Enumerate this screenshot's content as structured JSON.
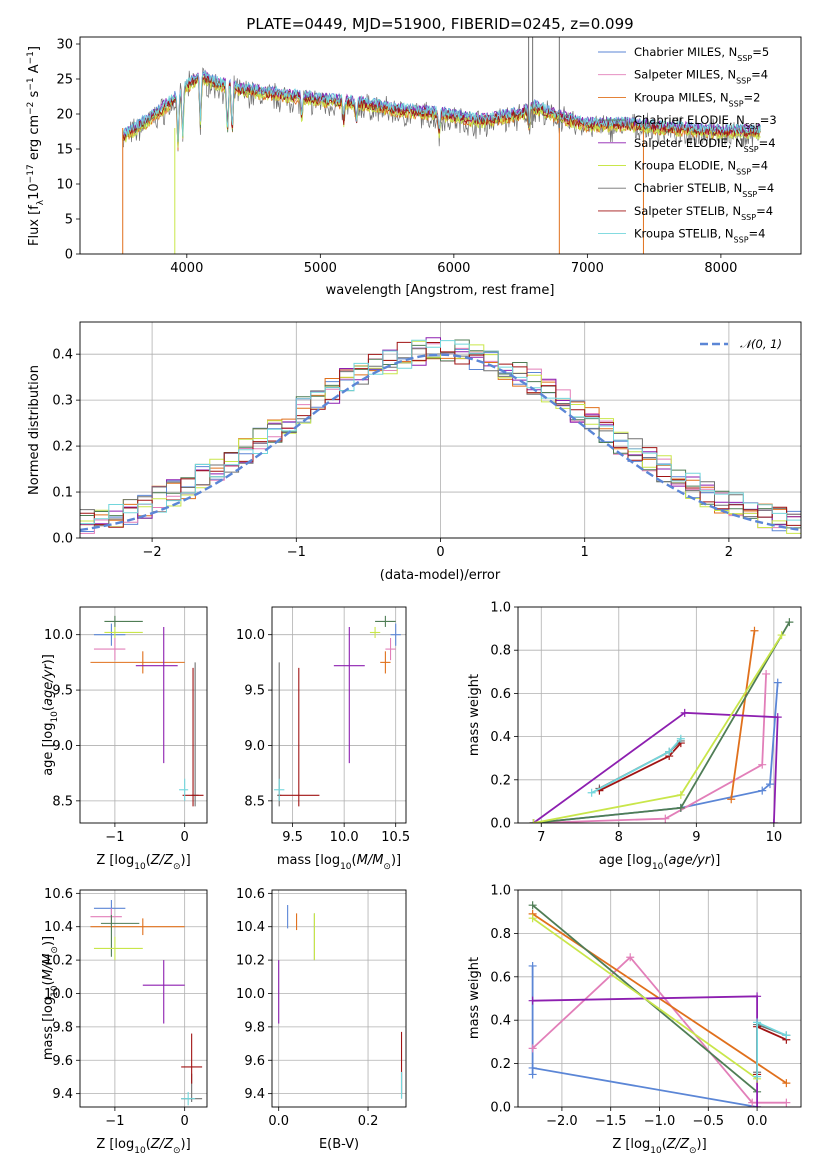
{
  "title": "PLATE=0449, MJD=51900, FIBERID=0245, z=0.099",
  "palette": {
    "Chabrier MILES": "#5b86d6",
    "Salpeter MILES": "#e27fb9",
    "Kroupa MILES": "#e0701c",
    "Chabrier ELODIE": "#4f7d55",
    "Salpeter ELODIE": "#8d1fb0",
    "Kroupa ELODIE": "#c9e64a",
    "Chabrier STELIB": "#707070",
    "Salpeter STELIB": "#a01313",
    "Kroupa STELIB": "#72d6dc"
  },
  "chart_data": [
    {
      "id": "spectrum",
      "type": "line",
      "title": "PLATE=0449, MJD=51900, FIBERID=0245, z=0.099",
      "xlabel": "wavelength [Angstrom, rest frame]",
      "ylabel": "Flux [f_λ 10^-17 erg cm^-2 s^-1 A^-1]",
      "xlim": [
        3200,
        8600
      ],
      "ylim": [
        0,
        31
      ],
      "xticks": [
        4000,
        5000,
        6000,
        7000,
        8000
      ],
      "yticks": [
        0,
        5,
        10,
        15,
        20,
        25,
        30
      ],
      "legend": "upper right",
      "legend_entries": [
        {
          "model": "Chabrier MILES",
          "n_ssp": "5"
        },
        {
          "model": "Salpeter MILES",
          "n_ssp": "4"
        },
        {
          "model": "Kroupa MILES",
          "n_ssp": "2"
        },
        {
          "model": "Chabrier ELODIE",
          "n_ssp": "3"
        },
        {
          "model": "Salpeter ELODIE",
          "n_ssp": "4"
        },
        {
          "model": "Kroupa ELODIE",
          "n_ssp": "4"
        },
        {
          "model": "Chabrier STELIB",
          "n_ssp": "4"
        },
        {
          "model": "Salpeter STELIB",
          "n_ssp": "4"
        },
        {
          "model": "Kroupa STELIB",
          "n_ssp": "4"
        }
      ],
      "continuum": [
        [
          3500,
          16.5
        ],
        [
          3700,
          19
        ],
        [
          3900,
          22
        ],
        [
          4000,
          24
        ],
        [
          4100,
          25.5
        ],
        [
          4200,
          24.5
        ],
        [
          4400,
          23.5
        ],
        [
          4600,
          23
        ],
        [
          4800,
          22.5
        ],
        [
          5000,
          22
        ],
        [
          5300,
          21.5
        ],
        [
          5600,
          20.5
        ],
        [
          5900,
          20
        ],
        [
          6200,
          19
        ],
        [
          6500,
          20
        ],
        [
          6600,
          21
        ],
        [
          6800,
          19.5
        ],
        [
          7000,
          18.5
        ],
        [
          7300,
          18.5
        ],
        [
          7600,
          18
        ],
        [
          8000,
          17.5
        ],
        [
          8300,
          17.5
        ]
      ],
      "absorption_lines": [
        3934,
        3969,
        4102,
        4304,
        4340,
        4861,
        5175,
        5270,
        5890,
        6563
      ],
      "spikes": [
        [
          3520,
          0
        ],
        [
          3910,
          0
        ],
        [
          6790,
          0
        ],
        [
          7420,
          0
        ],
        [
          6560,
          31
        ],
        [
          6590,
          31
        ],
        [
          6790,
          31
        ],
        [
          7420,
          0
        ]
      ]
    },
    {
      "id": "residuals",
      "type": "step",
      "xlabel": "(data-model)/error",
      "ylabel": "Normed distribution",
      "xlim": [
        -2.5,
        2.5
      ],
      "ylim": [
        0,
        0.47
      ],
      "xticks": [
        -2,
        -1,
        0,
        1,
        2
      ],
      "yticks": [
        0.0,
        0.1,
        0.2,
        0.3,
        0.4
      ],
      "legend": "upper right",
      "gaussian_label": "𝒩(0, 1)",
      "bin_width": 0.1
    },
    {
      "id": "age-vs-z",
      "type": "scatter",
      "xlabel": "Z [log10(Z/Z⊙)]",
      "ylabel": "age [log10(age/yr)]",
      "xlim": [
        -1.5,
        0.32
      ],
      "ylim": [
        8.3,
        10.25
      ],
      "xticks": [
        -1,
        0
      ],
      "yticks": [
        8.5,
        9.0,
        9.5,
        10.0
      ],
      "points": [
        {
          "model": "Chabrier MILES",
          "x": -1.05,
          "y": 10.0,
          "xerr": [
            0.25,
            0.2
          ],
          "yerr": [
            0.1,
            0.1
          ]
        },
        {
          "model": "Salpeter MILES",
          "x": -1.0,
          "y": 9.87,
          "xerr": [
            0.3,
            0.15
          ],
          "yerr": [
            0.1,
            0.1
          ]
        },
        {
          "model": "Kroupa MILES",
          "x": -0.6,
          "y": 9.75,
          "xerr": [
            0.75,
            0.6
          ],
          "yerr": [
            0.1,
            0.1
          ]
        },
        {
          "model": "Chabrier ELODIE",
          "x": -1.0,
          "y": 10.12,
          "xerr": [
            0.15,
            0.4
          ],
          "yerr": [
            0.05,
            0.05
          ]
        },
        {
          "model": "Salpeter ELODIE",
          "x": -0.3,
          "y": 9.72,
          "xerr": [
            0.4,
            0.2
          ],
          "yerr": [
            0.88,
            0.35
          ]
        },
        {
          "model": "Kroupa ELODIE",
          "x": -1.0,
          "y": 10.02,
          "xerr": [
            0.15,
            0.4
          ],
          "yerr": [
            0.05,
            0.05
          ]
        },
        {
          "model": "Chabrier STELIB",
          "x": 0.15,
          "y": 8.55,
          "xerr": [
            0.05,
            0.05
          ],
          "yerr": [
            0.1,
            1.2
          ]
        },
        {
          "model": "Salpeter STELIB",
          "x": 0.12,
          "y": 8.55,
          "xerr": [
            0.15,
            0.15
          ],
          "yerr": [
            0.1,
            1.15
          ]
        },
        {
          "model": "Kroupa STELIB",
          "x": 0.0,
          "y": 8.6,
          "xerr": [
            0.08,
            0.05
          ],
          "yerr": [
            0.1,
            0.1
          ]
        }
      ]
    },
    {
      "id": "age-vs-mass",
      "type": "scatter",
      "xlabel": "mass [log10(M/M⊙)]",
      "ylabel": "",
      "xlim": [
        9.3,
        10.6
      ],
      "ylim": [
        8.3,
        10.25
      ],
      "xticks": [
        9.5,
        10.0,
        10.5
      ],
      "yticks": [
        8.5,
        9.0,
        9.5,
        10.0
      ],
      "points": [
        {
          "model": "Chabrier MILES",
          "x": 10.5,
          "y": 10.0,
          "xerr": [
            0.05,
            0.05
          ],
          "yerr": [
            0.1,
            0.1
          ]
        },
        {
          "model": "Salpeter MILES",
          "x": 10.45,
          "y": 9.87,
          "xerr": [
            0.05,
            0.05
          ],
          "yerr": [
            0.1,
            0.1
          ]
        },
        {
          "model": "Kroupa MILES",
          "x": 10.4,
          "y": 9.75,
          "xerr": [
            0.05,
            0.05
          ],
          "yerr": [
            0.1,
            0.1
          ]
        },
        {
          "model": "Chabrier ELODIE",
          "x": 10.4,
          "y": 10.12,
          "xerr": [
            0.1,
            0.1
          ],
          "yerr": [
            0.05,
            0.05
          ]
        },
        {
          "model": "Salpeter ELODIE",
          "x": 10.05,
          "y": 9.72,
          "xerr": [
            0.15,
            0.15
          ],
          "yerr": [
            0.88,
            0.35
          ]
        },
        {
          "model": "Kroupa ELODIE",
          "x": 10.3,
          "y": 10.02,
          "xerr": [
            0.05,
            0.05
          ],
          "yerr": [
            0.05,
            0.05
          ]
        },
        {
          "model": "Chabrier STELIB",
          "x": 9.37,
          "y": 8.55,
          "xerr": [
            0.02,
            0.02
          ],
          "yerr": [
            0.1,
            1.2
          ]
        },
        {
          "model": "Salpeter STELIB",
          "x": 9.56,
          "y": 8.55,
          "xerr": [
            0.2,
            0.2
          ],
          "yerr": [
            0.1,
            1.15
          ]
        },
        {
          "model": "Kroupa STELIB",
          "x": 9.37,
          "y": 8.6,
          "xerr": [
            0.05,
            0.05
          ],
          "yerr": [
            0.1,
            0.1
          ]
        }
      ]
    },
    {
      "id": "weight-vs-age",
      "type": "line",
      "xlabel": "age [log10(age/yr)]",
      "ylabel": "mass weight",
      "xlim": [
        6.7,
        10.35
      ],
      "ylim": [
        0,
        1.0
      ],
      "xticks": [
        7,
        8,
        9,
        10
      ],
      "yticks": [
        0.0,
        0.2,
        0.4,
        0.6,
        0.8,
        1.0
      ],
      "series": [
        {
          "name": "Chabrier MILES",
          "x": [
            6.9,
            8.8,
            9.85,
            9.95,
            10.05
          ],
          "y": [
            0.0,
            0.07,
            0.15,
            0.18,
            0.65
          ]
        },
        {
          "name": "Salpeter MILES",
          "x": [
            6.9,
            8.6,
            9.85,
            9.9
          ],
          "y": [
            0.0,
            0.02,
            0.27,
            0.69
          ]
        },
        {
          "name": "Kroupa MILES",
          "x": [
            9.45,
            9.75
          ],
          "y": [
            0.11,
            0.89
          ]
        },
        {
          "name": "Chabrier ELODIE",
          "x": [
            6.9,
            8.8,
            10.2
          ],
          "y": [
            0.0,
            0.07,
            0.93
          ]
        },
        {
          "name": "Salpeter ELODIE",
          "x": [
            6.9,
            8.85,
            10.05,
            10.0
          ],
          "y": [
            0.0,
            0.51,
            0.49,
            0.0
          ]
        },
        {
          "name": "Kroupa ELODIE",
          "x": [
            6.9,
            8.8,
            10.1
          ],
          "y": [
            0.0,
            0.13,
            0.87
          ]
        },
        {
          "name": "Chabrier STELIB",
          "x": [
            7.75,
            8.65,
            8.8
          ],
          "y": [
            0.16,
            0.33,
            0.38
          ]
        },
        {
          "name": "Salpeter STELIB",
          "x": [
            7.75,
            8.65,
            8.8
          ],
          "y": [
            0.15,
            0.31,
            0.37
          ]
        },
        {
          "name": "Kroupa STELIB",
          "x": [
            7.65,
            8.65,
            8.8
          ],
          "y": [
            0.14,
            0.33,
            0.39
          ]
        }
      ]
    },
    {
      "id": "mass-vs-z",
      "type": "scatter",
      "xlabel": "Z [log10(Z/Z⊙)]",
      "ylabel": "mass [log10(M/M⊙)]",
      "xlim": [
        -1.5,
        0.32
      ],
      "ylim": [
        9.32,
        10.62
      ],
      "xticks": [
        -1,
        0
      ],
      "yticks": [
        9.4,
        9.6,
        9.8,
        10.0,
        10.2,
        10.4,
        10.6
      ],
      "points": [
        {
          "model": "Chabrier MILES",
          "x": -1.05,
          "y": 10.51,
          "xerr": [
            0.25,
            0.2
          ],
          "yerr": [
            0.05,
            0.05
          ]
        },
        {
          "model": "Salpeter MILES",
          "x": -1.05,
          "y": 10.46,
          "xerr": [
            0.3,
            0.15
          ],
          "yerr": [
            0.05,
            0.05
          ]
        },
        {
          "model": "Kroupa MILES",
          "x": -0.6,
          "y": 10.4,
          "xerr": [
            0.75,
            0.6
          ],
          "yerr": [
            0.05,
            0.05
          ]
        },
        {
          "model": "Chabrier ELODIE",
          "x": -1.05,
          "y": 10.42,
          "xerr": [
            0.15,
            0.4
          ],
          "yerr": [
            0.2,
            0.05
          ]
        },
        {
          "model": "Salpeter ELODIE",
          "x": -0.3,
          "y": 10.05,
          "xerr": [
            0.3,
            0.3
          ],
          "yerr": [
            0.23,
            0.15
          ]
        },
        {
          "model": "Kroupa ELODIE",
          "x": -1.0,
          "y": 10.27,
          "xerr": [
            0.3,
            0.4
          ],
          "yerr": [
            0.07,
            0.07
          ]
        },
        {
          "model": "Chabrier STELIB",
          "x": 0.1,
          "y": 9.37,
          "xerr": [
            0.15,
            0.15
          ],
          "yerr": [
            0.02,
            0.15
          ]
        },
        {
          "model": "Salpeter STELIB",
          "x": 0.1,
          "y": 9.56,
          "xerr": [
            0.15,
            0.15
          ],
          "yerr": [
            0.1,
            0.2
          ]
        },
        {
          "model": "Kroupa STELIB",
          "x": 0.05,
          "y": 9.37,
          "xerr": [
            0.1,
            0.1
          ],
          "yerr": [
            0.04,
            0.04
          ]
        }
      ]
    },
    {
      "id": "mass-vs-ebv",
      "type": "scatter",
      "xlabel": "E(B-V)",
      "ylabel": "",
      "xlim": [
        -0.015,
        0.285
      ],
      "ylim": [
        9.32,
        10.62
      ],
      "xticks": [
        0.0,
        0.2
      ],
      "yticks": [
        9.4,
        9.6,
        9.8,
        10.0,
        10.2,
        10.4,
        10.6
      ],
      "points": [
        {
          "model": "Chabrier MILES",
          "x": 0.02,
          "y": 10.45,
          "xerr": [
            0,
            0
          ],
          "yerr": [
            0.06,
            0.08
          ]
        },
        {
          "model": "Kroupa MILES",
          "x": 0.04,
          "y": 10.43,
          "xerr": [
            0,
            0
          ],
          "yerr": [
            0.05,
            0.05
          ]
        },
        {
          "model": "Chabrier ELODIE",
          "x": 0.08,
          "y": 10.33,
          "xerr": [
            0,
            0
          ],
          "yerr": [
            0.13,
            0.15
          ]
        },
        {
          "model": "Salpeter ELODIE",
          "x": 0.0,
          "y": 10.0,
          "xerr": [
            0,
            0
          ],
          "yerr": [
            0.18,
            0.2
          ]
        },
        {
          "model": "Kroupa ELODIE",
          "x": 0.08,
          "y": 10.33,
          "xerr": [
            0,
            0
          ],
          "yerr": [
            0.13,
            0.15
          ]
        },
        {
          "model": "Chabrier STELIB",
          "x": 0.275,
          "y": 9.45,
          "xerr": [
            0,
            0
          ],
          "yerr": [
            0.08,
            0.08
          ]
        },
        {
          "model": "Salpeter STELIB",
          "x": 0.275,
          "y": 9.55,
          "xerr": [
            0,
            0
          ],
          "yerr": [
            0.15,
            0.22
          ]
        },
        {
          "model": "Kroupa STELIB",
          "x": 0.275,
          "y": 9.45,
          "xerr": [
            0,
            0
          ],
          "yerr": [
            0.08,
            0.08
          ]
        }
      ]
    },
    {
      "id": "weight-vs-z",
      "type": "line",
      "xlabel": "Z [log10(Z/Z⊙)]",
      "ylabel": "mass weight",
      "xlim": [
        -2.45,
        0.45
      ],
      "ylim": [
        0,
        1.0
      ],
      "xticks": [
        -2.0,
        -1.5,
        -1.0,
        -0.5,
        0.0
      ],
      "yticks": [
        0.0,
        0.2,
        0.4,
        0.6,
        0.8,
        1.0
      ],
      "series": [
        {
          "name": "Chabrier MILES",
          "x": [
            -2.3,
            -2.3,
            -2.3,
            0.0
          ],
          "y": [
            0.65,
            0.15,
            0.18,
            0.0
          ]
        },
        {
          "name": "Salpeter MILES",
          "x": [
            -2.3,
            -1.3,
            -0.05,
            0.3
          ],
          "y": [
            0.27,
            0.69,
            0.02,
            0.02
          ]
        },
        {
          "name": "Kroupa MILES",
          "x": [
            -2.3,
            0.3
          ],
          "y": [
            0.89,
            0.11
          ]
        },
        {
          "name": "Chabrier ELODIE",
          "x": [
            -2.3,
            0.0
          ],
          "y": [
            0.93,
            0.07
          ]
        },
        {
          "name": "Salpeter ELODIE",
          "x": [
            -2.3,
            0.0,
            0.0
          ],
          "y": [
            0.49,
            0.51,
            0.0
          ]
        },
        {
          "name": "Kroupa ELODIE",
          "x": [
            -2.3,
            0.0
          ],
          "y": [
            0.87,
            0.13
          ]
        },
        {
          "name": "Chabrier STELIB",
          "x": [
            0.0,
            0.0,
            0.3
          ],
          "y": [
            0.16,
            0.38,
            0.33
          ]
        },
        {
          "name": "Salpeter STELIB",
          "x": [
            0.0,
            0.0,
            0.3
          ],
          "y": [
            0.15,
            0.37,
            0.31
          ]
        },
        {
          "name": "Kroupa STELIB",
          "x": [
            0.0,
            0.0,
            0.3
          ],
          "y": [
            0.14,
            0.39,
            0.33
          ]
        }
      ]
    }
  ]
}
